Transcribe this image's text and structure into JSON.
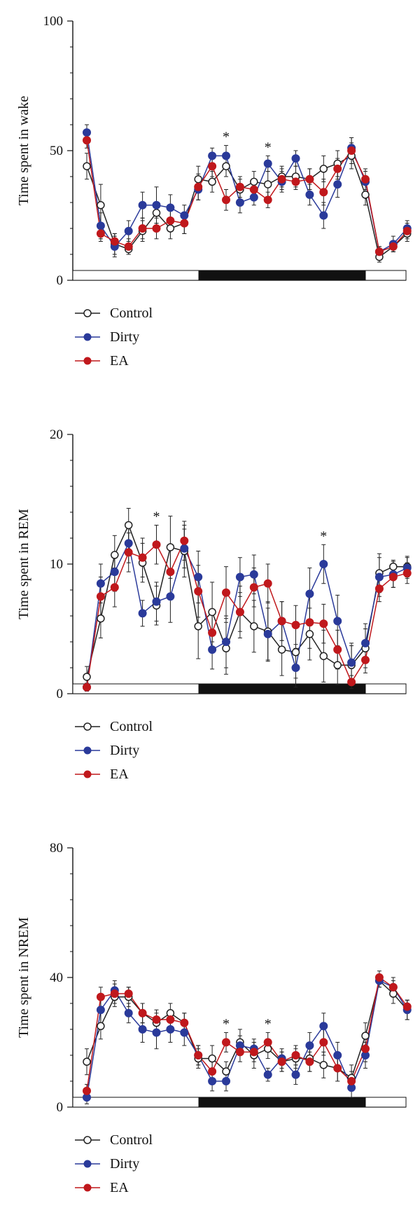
{
  "colors": {
    "Control": "#222222",
    "Dirty": "#2a3a9a",
    "EA": "#c0181c"
  },
  "legend": [
    {
      "name": "Control",
      "marker": "open-circle"
    },
    {
      "name": "Dirty",
      "marker": "filled-circle"
    },
    {
      "name": "EA",
      "marker": "filled-circle"
    }
  ],
  "chart_data": [
    {
      "type": "line",
      "ylabel": "Time spent in wake",
      "ylim": [
        0,
        100
      ],
      "yticks": [
        "0",
        "50",
        "100"
      ],
      "light_dark_bar": [
        "light",
        "dark",
        "light"
      ],
      "x": [
        1,
        2,
        3,
        4,
        5,
        6,
        7,
        8,
        9,
        10,
        11,
        12,
        13,
        14,
        15,
        16,
        17,
        18,
        19,
        20,
        21,
        22,
        23,
        24
      ],
      "series": [
        {
          "name": "Control",
          "values": [
            44,
            29,
            14,
            12,
            19,
            26,
            20,
            22,
            39,
            38,
            44,
            35,
            38,
            37,
            40,
            40,
            39,
            43,
            45,
            48,
            33,
            9,
            13,
            18
          ],
          "errors": [
            5,
            8,
            4,
            2,
            4,
            4,
            4,
            4,
            5,
            4,
            4,
            4,
            4,
            5,
            4,
            4,
            4,
            5,
            5,
            5,
            4,
            2,
            2,
            3
          ]
        },
        {
          "name": "Dirty",
          "values": [
            57,
            21,
            13,
            19,
            29,
            29,
            28,
            25,
            35,
            48,
            48,
            30,
            32,
            45,
            38,
            47,
            33,
            25,
            37,
            51,
            38,
            11,
            14,
            20
          ],
          "errors": [
            3,
            5,
            4,
            4,
            5,
            7,
            5,
            4,
            4,
            3,
            4,
            4,
            3,
            3,
            4,
            3,
            4,
            5,
            5,
            4,
            4,
            2,
            3,
            3
          ]
        },
        {
          "name": "EA",
          "values": [
            54,
            18,
            15,
            13,
            20,
            20,
            23,
            22,
            36,
            44,
            31,
            36,
            35,
            31,
            39,
            38,
            39,
            34,
            43,
            50,
            39,
            11,
            13,
            19
          ],
          "errors": [
            3,
            3,
            3,
            3,
            4,
            4,
            4,
            4,
            5,
            4,
            4,
            4,
            4,
            3,
            4,
            3,
            4,
            5,
            4,
            5,
            4,
            2,
            2,
            3
          ]
        }
      ],
      "annotations": [
        {
          "x": 11,
          "text": "*"
        },
        {
          "x": 14,
          "text": "*"
        }
      ]
    },
    {
      "type": "line",
      "ylabel": "Time spent in REM",
      "ylim": [
        0,
        20
      ],
      "yticks": [
        "0",
        "10",
        "20"
      ],
      "light_dark_bar": [
        "light",
        "dark",
        "light"
      ],
      "x": [
        1,
        2,
        3,
        4,
        5,
        6,
        7,
        8,
        9,
        10,
        11,
        12,
        13,
        14,
        15,
        16,
        17,
        18,
        19,
        20,
        21,
        22,
        23,
        24
      ],
      "series": [
        {
          "name": "Control",
          "values": [
            1.3,
            5.8,
            10.7,
            13.0,
            10.1,
            6.8,
            11.3,
            11.0,
            5.2,
            6.3,
            3.5,
            6.3,
            5.2,
            4.8,
            3.4,
            3.2,
            4.6,
            2.9,
            2.2,
            2.2,
            3.5,
            9.3,
            9.8,
            9.8
          ],
          "errors": [
            0.8,
            1.5,
            1.5,
            1.3,
            1.5,
            1.5,
            2.4,
            2.0,
            2.5,
            2.3,
            2.0,
            2.0,
            2.0,
            2.3,
            2.0,
            2.0,
            2.0,
            2.0,
            1.5,
            1.5,
            1.5,
            1.5,
            0.5,
            0.8
          ]
        },
        {
          "name": "Dirty",
          "values": [
            0.5,
            8.5,
            9.4,
            11.6,
            6.2,
            7.1,
            7.5,
            11.2,
            9.0,
            3.4,
            4.0,
            9.0,
            9.2,
            4.6,
            5.6,
            2.0,
            7.7,
            10.0,
            5.6,
            2.4,
            3.9,
            9.0,
            9.2,
            9.7
          ],
          "errors": [
            0.3,
            1.5,
            1.5,
            1.5,
            1.0,
            1.5,
            2.0,
            1.5,
            2.0,
            1.5,
            2.0,
            1.5,
            1.5,
            2.0,
            1.5,
            1.5,
            2.0,
            1.5,
            2.0,
            1.5,
            1.5,
            1.5,
            1.0,
            0.8
          ]
        },
        {
          "name": "EA",
          "values": [
            0.5,
            7.5,
            8.2,
            10.9,
            10.5,
            11.5,
            9.4,
            11.8,
            7.9,
            4.7,
            7.8,
            6.3,
            8.2,
            8.5,
            5.6,
            5.3,
            5.5,
            5.4,
            3.4,
            0.9,
            2.6,
            8.1,
            9.0,
            9.3
          ],
          "errors": [
            0.3,
            1.5,
            1.5,
            1.5,
            1.5,
            1.5,
            2.0,
            1.5,
            2.0,
            1.5,
            2.0,
            1.5,
            1.5,
            1.5,
            1.5,
            1.5,
            2.0,
            1.5,
            1.5,
            0.5,
            1.0,
            1.0,
            0.8,
            0.8
          ]
        }
      ],
      "annotations": [
        {
          "x": 6,
          "text": "*"
        },
        {
          "x": 18,
          "text": "*"
        }
      ]
    },
    {
      "type": "line",
      "ylabel": "Time spent in NREM",
      "ylim": [
        0,
        80
      ],
      "yticks": [
        "0",
        "40",
        "80"
      ],
      "light_dark_bar": [
        "light",
        "dark",
        "light"
      ],
      "x": [
        1,
        2,
        3,
        4,
        5,
        6,
        7,
        8,
        9,
        10,
        11,
        12,
        13,
        14,
        15,
        16,
        17,
        18,
        19,
        20,
        21,
        22,
        23,
        24
      ],
      "series": [
        {
          "name": "Control",
          "values": [
            14,
            25,
            34,
            34,
            29,
            26,
            29,
            26,
            15,
            15,
            11,
            20,
            16,
            18,
            14,
            15,
            15,
            13,
            12,
            9,
            22,
            39,
            35,
            30
          ],
          "errors": [
            4,
            4,
            3,
            3,
            3,
            3,
            3,
            3,
            3,
            4,
            3,
            4,
            4,
            3,
            3,
            3,
            4,
            4,
            4,
            4,
            4,
            2,
            3,
            3
          ]
        },
        {
          "name": "Dirty",
          "values": [
            3,
            30,
            36,
            29,
            24,
            23,
            24,
            23,
            16,
            8,
            8,
            19,
            18,
            10,
            15,
            10,
            19,
            25,
            16,
            6,
            16,
            39,
            37,
            30
          ],
          "errors": [
            2,
            4,
            3,
            3,
            4,
            5,
            4,
            4,
            3,
            3,
            3,
            3,
            3,
            2,
            3,
            3,
            4,
            4,
            4,
            3,
            4,
            2,
            3,
            3
          ]
        },
        {
          "name": "EA",
          "values": [
            5,
            34,
            35,
            35,
            29,
            27,
            27,
            26,
            16,
            11,
            20,
            17,
            17,
            20,
            14,
            16,
            14,
            20,
            12,
            8,
            18,
            40,
            37,
            31
          ],
          "errors": [
            2,
            3,
            3,
            2,
            3,
            3,
            3,
            3,
            3,
            4,
            3,
            3,
            3,
            3,
            3,
            3,
            3,
            4,
            4,
            3,
            4,
            2,
            2,
            2
          ]
        }
      ],
      "annotations": [
        {
          "x": 11,
          "text": "*"
        },
        {
          "x": 14,
          "text": "*"
        }
      ]
    }
  ]
}
